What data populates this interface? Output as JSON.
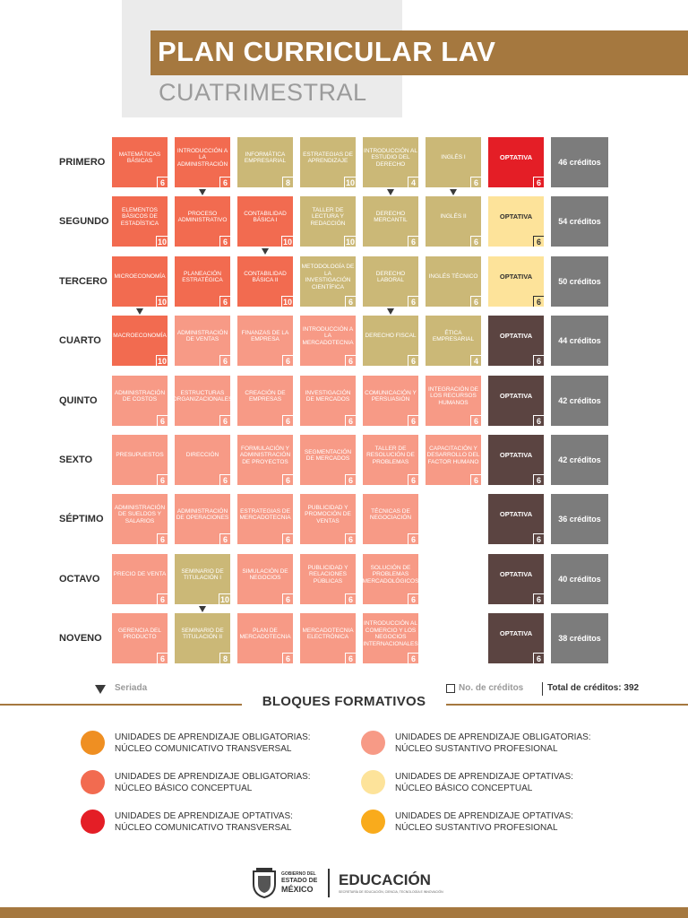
{
  "header": {
    "title": "PLAN CURRICULAR LAV",
    "subtitle": "CUATRIMESTRAL"
  },
  "colors": {
    "basic": "#f26b50",
    "sust": "#f79a86",
    "trans": "#cbb877",
    "opt_trans": "#e41e26",
    "opt_basic": "#fde39a",
    "opt_sust": "#5b4441",
    "accent": "#a5783f"
  },
  "semesters": [
    {
      "label": "PRIMERO",
      "credits": "46 créditos",
      "courses": [
        {
          "name": "MATEMÁTICAS BÁSICAS",
          "credits": "6",
          "type": "basic"
        },
        {
          "name": "INTRODUCCIÓN A LA ADMINISTRACIÓN",
          "credits": "6",
          "type": "basic",
          "serial": true
        },
        {
          "name": "INFORMÁTICA EMPRESARIAL",
          "credits": "8",
          "type": "trans"
        },
        {
          "name": "ESTRATEGIAS DE APRENDIZAJE",
          "credits": "10",
          "type": "trans"
        },
        {
          "name": "INTRODUCCIÓN AL ESTUDIO DEL DERECHO",
          "credits": "4",
          "type": "trans",
          "serial": true
        },
        {
          "name": "INGLÉS I",
          "credits": "6",
          "type": "trans",
          "serial": true
        },
        {
          "name": "OPTATIVA",
          "credits": "6",
          "type": "opt-trans"
        }
      ]
    },
    {
      "label": "SEGUNDO",
      "credits": "54 créditos",
      "courses": [
        {
          "name": "ELEMENTOS BÁSICOS DE ESTADÍSTICA",
          "credits": "10",
          "type": "basic"
        },
        {
          "name": "PROCESO ADMINISTRATIVO",
          "credits": "6",
          "type": "basic"
        },
        {
          "name": "CONTABILIDAD BÁSICA I",
          "credits": "10",
          "type": "basic",
          "serial": true
        },
        {
          "name": "TALLER DE LECTURA Y REDACCIÓN",
          "credits": "10",
          "type": "trans"
        },
        {
          "name": "DERECHO MERCANTIL",
          "credits": "6",
          "type": "trans"
        },
        {
          "name": "INGLÉS II",
          "credits": "6",
          "type": "trans"
        },
        {
          "name": "OPTATIVA",
          "credits": "6",
          "type": "opt-basic"
        }
      ]
    },
    {
      "label": "TERCERO",
      "credits": "50 créditos",
      "courses": [
        {
          "name": "MICROECONOMÍA",
          "credits": "10",
          "type": "basic",
          "serial": true
        },
        {
          "name": "PLANEACIÓN ESTRATÉGICA",
          "credits": "6",
          "type": "basic"
        },
        {
          "name": "CONTABILIDAD BÁSICA II",
          "credits": "10",
          "type": "basic"
        },
        {
          "name": "METODOLOGÍA DE LA INVESTIGACIÓN CIENTÍFICA",
          "credits": "6",
          "type": "trans"
        },
        {
          "name": "DERECHO LABORAL",
          "credits": "6",
          "type": "trans",
          "serial": true
        },
        {
          "name": "INGLÉS TÉCNICO",
          "credits": "6",
          "type": "trans"
        },
        {
          "name": "OPTATIVA",
          "credits": "6",
          "type": "opt-basic"
        }
      ]
    },
    {
      "label": "CUARTO",
      "credits": "44 créditos",
      "courses": [
        {
          "name": "MACROECONOMÍA",
          "credits": "10",
          "type": "basic"
        },
        {
          "name": "ADMINISTRACIÓN DE VENTAS",
          "credits": "6",
          "type": "sust"
        },
        {
          "name": "FINANZAS DE LA EMPRESA",
          "credits": "6",
          "type": "sust"
        },
        {
          "name": "INTRODUCCIÓN A LA MERCADOTECNIA",
          "credits": "6",
          "type": "sust"
        },
        {
          "name": "DERECHO FISCAL",
          "credits": "6",
          "type": "trans"
        },
        {
          "name": "ÉTICA EMPRESARIAL",
          "credits": "4",
          "type": "trans"
        },
        {
          "name": "OPTATIVA",
          "credits": "6",
          "type": "opt-sust"
        }
      ]
    },
    {
      "label": "QUINTO",
      "credits": "42 créditos",
      "courses": [
        {
          "name": "ADMINISTRACIÓN DE COSTOS",
          "credits": "6",
          "type": "sust"
        },
        {
          "name": "ESTRUCTURAS ORGANIZACIONALES",
          "credits": "6",
          "type": "sust"
        },
        {
          "name": "CREACIÓN DE EMPRESAS",
          "credits": "6",
          "type": "sust"
        },
        {
          "name": "INVESTIGACIÓN DE MERCADOS",
          "credits": "6",
          "type": "sust"
        },
        {
          "name": "COMUNICACIÓN Y PERSUASIÓN",
          "credits": "6",
          "type": "sust"
        },
        {
          "name": "INTEGRACIÓN DE LOS RECURSOS HUMANOS",
          "credits": "6",
          "type": "sust"
        },
        {
          "name": "OPTATIVA",
          "credits": "6",
          "type": "opt-sust"
        }
      ]
    },
    {
      "label": "SEXTO",
      "credits": "42 créditos",
      "courses": [
        {
          "name": "PRESUPUESTOS",
          "credits": "6",
          "type": "sust"
        },
        {
          "name": "DIRECCIÓN",
          "credits": "6",
          "type": "sust"
        },
        {
          "name": "FORMULACIÓN Y ADMINISTRACIÓN DE PROYECTOS",
          "credits": "6",
          "type": "sust"
        },
        {
          "name": "SEGMENTACIÓN DE MERCADOS",
          "credits": "6",
          "type": "sust"
        },
        {
          "name": "TALLER DE RESOLUCIÓN DE PROBLEMAS",
          "credits": "6",
          "type": "sust"
        },
        {
          "name": "CAPACITACIÓN Y DESARROLLO DEL FACTOR HUMANO",
          "credits": "6",
          "type": "sust"
        },
        {
          "name": "OPTATIVA",
          "credits": "6",
          "type": "opt-sust"
        }
      ]
    },
    {
      "label": "SÉPTIMO",
      "credits": "36 créditos",
      "courses": [
        {
          "name": "ADMINISTRACIÓN DE SUELDOS Y SALARIOS",
          "credits": "6",
          "type": "sust"
        },
        {
          "name": "ADMINISTRACIÓN DE OPERACIONES",
          "credits": "6",
          "type": "sust"
        },
        {
          "name": "ESTRATEGIAS DE MERCADOTECNIA",
          "credits": "6",
          "type": "sust"
        },
        {
          "name": "PUBLICIDAD Y PROMOCIÓN DE VENTAS",
          "credits": "6",
          "type": "sust"
        },
        {
          "name": "TÉCNICAS DE NEGOCIACIÓN",
          "credits": "6",
          "type": "sust"
        },
        null,
        {
          "name": "OPTATIVA",
          "credits": "6",
          "type": "opt-sust"
        }
      ]
    },
    {
      "label": "OCTAVO",
      "credits": "40 créditos",
      "courses": [
        {
          "name": "PRECIO DE VENTA",
          "credits": "6",
          "type": "sust"
        },
        {
          "name": "SEMINARIO DE TITULACIÓN I",
          "credits": "10",
          "type": "trans",
          "serial": true
        },
        {
          "name": "SIMULACIÓN DE NEGOCIOS",
          "credits": "6",
          "type": "sust"
        },
        {
          "name": "PUBLICIDAD Y RELACIONES PÚBLICAS",
          "credits": "6",
          "type": "sust"
        },
        {
          "name": "SOLUCIÓN DE PROBLEMAS MERCADOLÓGICOS",
          "credits": "6",
          "type": "sust"
        },
        null,
        {
          "name": "OPTATIVA",
          "credits": "6",
          "type": "opt-sust"
        }
      ]
    },
    {
      "label": "NOVENO",
      "credits": "38 créditos",
      "courses": [
        {
          "name": "GERENCIA DEL PRODUCTO",
          "credits": "6",
          "type": "sust"
        },
        {
          "name": "SEMINARIO DE TITULACIÓN II",
          "credits": "8",
          "type": "trans"
        },
        {
          "name": "PLAN DE MERCADOTECNIA",
          "credits": "6",
          "type": "sust"
        },
        {
          "name": "MERCADOTECNIA ELECTRÓNICA",
          "credits": "6",
          "type": "sust"
        },
        {
          "name": "INTRODUCCIÓN AL COMERCIO Y LOS NEGOCIOS INTERNACIONALES",
          "credits": "6",
          "type": "sust"
        },
        null,
        {
          "name": "OPTATIVA",
          "credits": "6",
          "type": "opt-sust"
        }
      ]
    }
  ],
  "legend_top": {
    "seriada": "Seriada",
    "no_creditos": "No. de créditos",
    "total": "Total de créditos: 392"
  },
  "bloques_title": "BLOQUES FORMATIVOS",
  "legend": [
    {
      "line1": "UNIDADES DE APRENDIZAJE OBLIGATORIAS:",
      "line2": "NÚCLEO COMUNICATIVO TRANSVERSAL",
      "color": "#ef8f22"
    },
    {
      "line1": "UNIDADES DE APRENDIZAJE OBLIGATORIAS:",
      "line2": "NÚCLEO SUSTANTIVO PROFESIONAL",
      "color": "#f79a86"
    },
    {
      "line1": "UNIDADES DE APRENDIZAJE OBLIGATORIAS:",
      "line2": "NÚCLEO BÁSICO CONCEPTUAL",
      "color": "#f26b50"
    },
    {
      "line1": "UNIDADES DE APRENDIZAJE OPTATIVAS:",
      "line2": "NÚCLEO BÁSICO CONCEPTUAL",
      "color": "#fde39a"
    },
    {
      "line1": "UNIDADES DE APRENDIZAJE OPTATIVAS:",
      "line2": "NÚCLEO COMUNICATIVO TRANSVERSAL",
      "color": "#e41e26"
    },
    {
      "line1": "UNIDADES DE APRENDIZAJE OPTATIVAS:",
      "line2": "NÚCLEO SUSTANTIVO PROFESIONAL",
      "color": "#f9ab1c"
    }
  ],
  "footer": {
    "gov_line1": "GOBIERNO DEL",
    "gov_line2": "ESTADO DE",
    "gov_line3": "MÉXICO",
    "educacion": "EDUCACIÓN",
    "educacion_sub": "SECRETARÍA DE EDUCACIÓN, CIENCIA, TECNOLOGÍA E INNOVACIÓN"
  }
}
